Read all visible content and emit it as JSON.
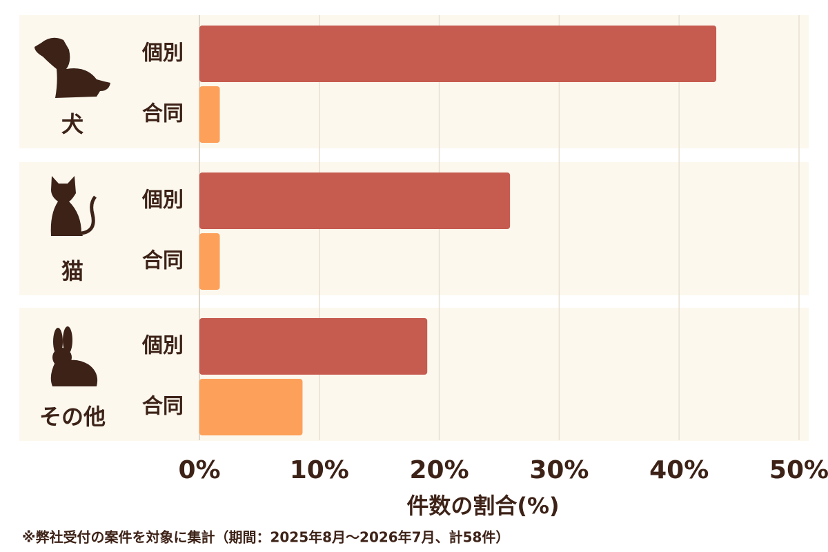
{
  "chart_data": {
    "type": "bar",
    "orientation": "horizontal",
    "categories": [
      "犬",
      "猫",
      "その他"
    ],
    "series": [
      {
        "name": "個別",
        "color": "#c65b4f",
        "values": [
          43.1,
          25.9,
          19.0
        ]
      },
      {
        "name": "合同",
        "color": "#fda05a",
        "values": [
          1.7,
          1.7,
          8.6
        ]
      }
    ],
    "xlabel": "件数の割合(%)",
    "xlim": [
      0,
      50
    ],
    "xticks": [
      {
        "value": 0,
        "label": "0%"
      },
      {
        "value": 10,
        "label": "10%"
      },
      {
        "value": 20,
        "label": "20%"
      },
      {
        "value": 30,
        "label": "30%"
      },
      {
        "value": 40,
        "label": "40%"
      },
      {
        "value": 50,
        "label": "50%"
      }
    ],
    "grid": true,
    "note": "※弊社受付の案件を対象に集計（期間：2025年8月～2026年7月、計58件）"
  }
}
